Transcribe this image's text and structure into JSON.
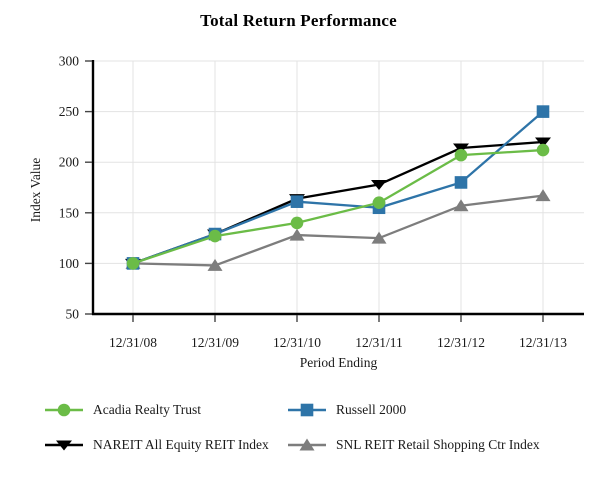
{
  "title": "Total Return Performance",
  "chart_data": {
    "type": "line",
    "title": "Total Return Performance",
    "xlabel": "Period Ending",
    "ylabel": "Index Value",
    "categories": [
      "12/31/08",
      "12/31/09",
      "12/31/10",
      "12/31/11",
      "12/31/12",
      "12/31/13"
    ],
    "ylim": [
      50,
      300
    ],
    "ytick_step": 50,
    "grid": true,
    "legend_position": "bottom",
    "series": [
      {
        "name": "Acadia Realty Trust",
        "color": "#6bbc47",
        "marker": "circle",
        "values": [
          100,
          127,
          140,
          160,
          207,
          212
        ]
      },
      {
        "name": "Russell 2000",
        "color": "#2e74a8",
        "marker": "square",
        "values": [
          100,
          129,
          161,
          155,
          180,
          250
        ]
      },
      {
        "name": "NAREIT All Equity REIT Index",
        "color": "#000000",
        "marker": "triangle-down",
        "values": [
          100,
          129,
          164,
          178,
          214,
          220
        ]
      },
      {
        "name": "SNL REIT Retail Shopping Ctr Index",
        "color": "#7d7d7d",
        "marker": "triangle-up",
        "values": [
          100,
          98,
          128,
          125,
          157,
          167
        ]
      }
    ],
    "draw_order": [
      3,
      2,
      1,
      0
    ]
  },
  "colors": {
    "background": "#ffffff",
    "gridline": "#e3e3e3",
    "axis": "#000000",
    "tick_label": "#1a1a1a"
  }
}
